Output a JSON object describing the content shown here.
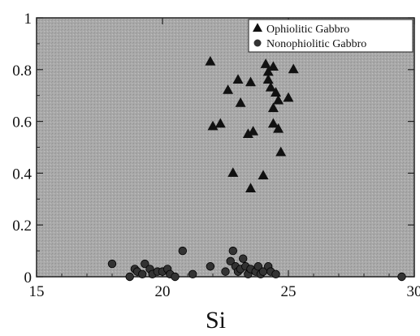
{
  "chart_data": {
    "type": "scatter",
    "title": "",
    "xlabel": "Si",
    "ylabel": "",
    "xlim": [
      15,
      30
    ],
    "ylim": [
      0,
      1
    ],
    "x_ticks": [
      "15",
      "20",
      "25",
      "30"
    ],
    "y_ticks": [
      "0",
      "0.2",
      "0.4",
      "0.6",
      "0.8",
      "1"
    ],
    "grid": false,
    "legend_position": "top-right",
    "plot_background": "#aaaaaa",
    "series": [
      {
        "name": "Ophiolitic Gabbro",
        "marker": "triangle",
        "color": "#111111",
        "points": [
          [
            21.9,
            0.83
          ],
          [
            22.0,
            0.58
          ],
          [
            22.3,
            0.59
          ],
          [
            22.6,
            0.72
          ],
          [
            22.8,
            0.4
          ],
          [
            23.0,
            0.76
          ],
          [
            23.1,
            0.67
          ],
          [
            23.4,
            0.55
          ],
          [
            23.5,
            0.75
          ],
          [
            23.5,
            0.34
          ],
          [
            23.6,
            0.56
          ],
          [
            24.0,
            0.39
          ],
          [
            24.1,
            0.82
          ],
          [
            24.2,
            0.79
          ],
          [
            24.2,
            0.76
          ],
          [
            24.3,
            0.73
          ],
          [
            24.4,
            0.81
          ],
          [
            24.4,
            0.65
          ],
          [
            24.4,
            0.59
          ],
          [
            24.5,
            0.71
          ],
          [
            24.6,
            0.68
          ],
          [
            24.6,
            0.57
          ],
          [
            24.7,
            0.48
          ],
          [
            25.0,
            0.69
          ],
          [
            25.2,
            0.8
          ]
        ]
      },
      {
        "name": "Nonophiolitic Gabbro",
        "marker": "circle",
        "color": "#333333",
        "points": [
          [
            18.0,
            0.05
          ],
          [
            18.7,
            0.0
          ],
          [
            18.9,
            0.03
          ],
          [
            19.0,
            0.02
          ],
          [
            19.2,
            0.01
          ],
          [
            19.3,
            0.05
          ],
          [
            19.5,
            0.03
          ],
          [
            19.6,
            0.01
          ],
          [
            19.8,
            0.02
          ],
          [
            20.0,
            0.02
          ],
          [
            20.2,
            0.03
          ],
          [
            20.3,
            0.01
          ],
          [
            20.5,
            0.0
          ],
          [
            20.8,
            0.1
          ],
          [
            21.2,
            0.01
          ],
          [
            21.9,
            0.04
          ],
          [
            22.5,
            0.02
          ],
          [
            22.7,
            0.06
          ],
          [
            22.8,
            0.1
          ],
          [
            22.9,
            0.04
          ],
          [
            23.0,
            0.02
          ],
          [
            23.1,
            0.03
          ],
          [
            23.2,
            0.07
          ],
          [
            23.3,
            0.04
          ],
          [
            23.4,
            0.01
          ],
          [
            23.5,
            0.03
          ],
          [
            23.7,
            0.02
          ],
          [
            23.8,
            0.04
          ],
          [
            23.9,
            0.01
          ],
          [
            24.0,
            0.02
          ],
          [
            24.2,
            0.04
          ],
          [
            24.3,
            0.02
          ],
          [
            24.5,
            0.01
          ],
          [
            29.5,
            0.0
          ]
        ]
      }
    ]
  }
}
